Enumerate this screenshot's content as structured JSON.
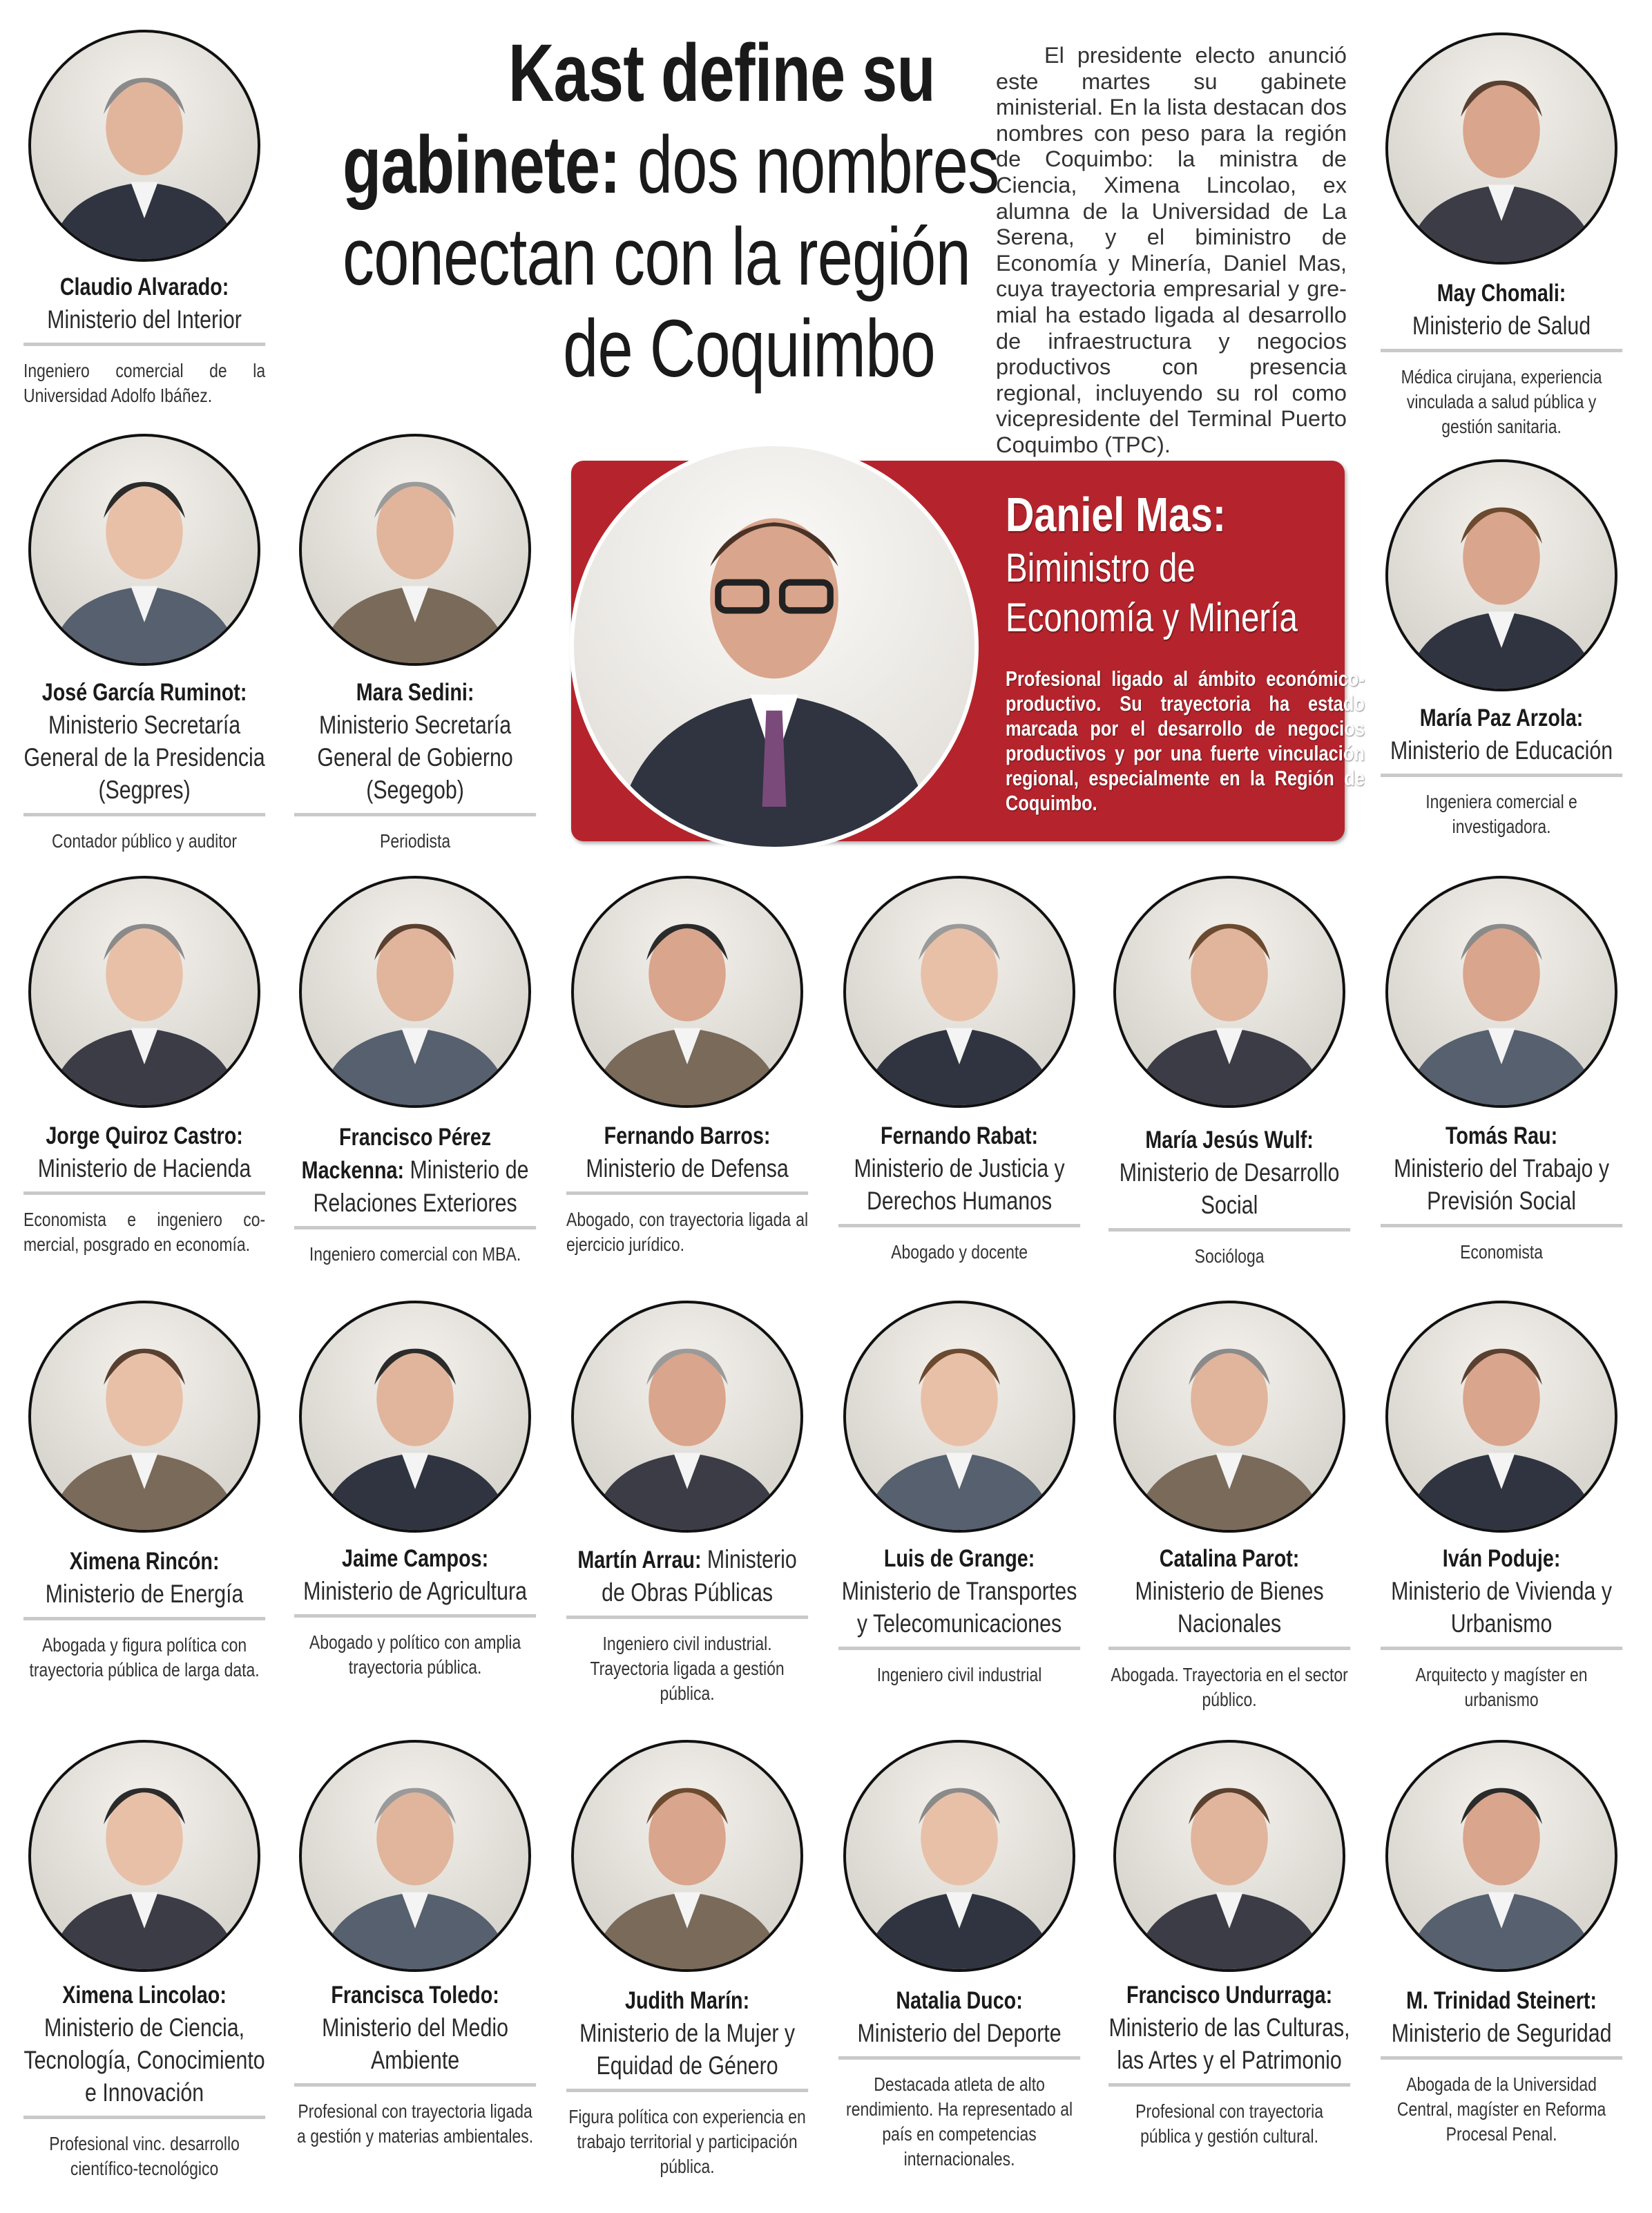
{
  "headline": {
    "line1_bold": "Kast define su",
    "line2_bold": "gabinete:",
    "line2_rest": " dos nombres",
    "line3": "conectan con la región",
    "line4": "de Coquimbo"
  },
  "intro": "El presidente electo anunció este martes su gabinete ministerial. En la lista destacan dos nombres con peso para la región de Coquim­bo: la ministra de Ciencia, Ximena Lincolao, ex alumna de la Universi­dad de La Serena, y el biministro de Economía y Minería, Daniel Mas, cuya trayectoria empresarial y gre­mial ha estado ligada al desarrollo de infraestructura y negocios produc­tivos con presencia regional, inclu­yendo su rol como vicepresidente del Terminal Puerto Coquimbo (TPC).",
  "feature": {
    "name": "Daniel Mas:",
    "role_line1": "Biministro de",
    "role_line2": "Economía y Minería",
    "description": "Profesional ligado al ámbito econó­mico-productivo. Su trayectoria ha estado marcada por el desarrollo de negocios productivos y por una fuer­te vinculación regional, especialmen­te en la Región de Coquimbo.",
    "box_color": "#b5242c"
  },
  "cards": [
    {
      "name": "Claudio Alvarado:",
      "ministry": "Ministerio del Interior",
      "caption": "Ingeniero comercial de la Universidad Adolfo Ibáñez."
    },
    {
      "name": "May Chomali:",
      "ministry": "Ministerio de Salud",
      "caption": "Médica cirujana, experien­cia vinculada a salud pública y gestión sanitaria."
    },
    {
      "name": "José García Ruminot:",
      "ministry": "Ministerio Secretaría General de la Presi­dencia (Segpres)",
      "caption": "Contador público y auditor"
    },
    {
      "name": "Mara Sedini:",
      "ministry": "Ministerio Secretaría General de Gobierno (Segegob)",
      "caption": "Periodista"
    },
    {
      "name": "María Paz Arzola:",
      "ministry": "Ministerio de Educación",
      "caption": "Ingeniera comercial e investigadora."
    },
    {
      "name": "Jorge Quiroz Castro:",
      "ministry": "Ministerio de Hacienda",
      "caption": "Economista e ingeniero co­mercial, posgrado en eco­nomía."
    },
    {
      "name": "Francisco Pérez Mackenna:",
      "ministry": "Ministerio de Relaciones Exteriores",
      "caption": "Ingeniero comercial con MBA."
    },
    {
      "name": "Fernando Barros:",
      "ministry": "Ministerio de Defensa",
      "caption": "Abogado, con trayectoria li­gada al ejercicio jurídico."
    },
    {
      "name": "Fernando Rabat:",
      "ministry": "Ministerio de Justicia y Derechos Humanos",
      "caption": "Abogado y docente"
    },
    {
      "name": "María Jesús Wulf:",
      "ministry": "Ministerio de Desarrollo Social",
      "caption": "Socióloga"
    },
    {
      "name": "Tomás Rau:",
      "ministry": "Ministerio del Trabajo y Previsión Social",
      "caption": "Economista"
    },
    {
      "name": "Ximena Rincón:",
      "ministry": "Ministerio de Energía",
      "caption": "Abogada y figura política con trayectoria pública de larga data."
    },
    {
      "name": "Jaime Campos:",
      "ministry": "Ministerio de Agricultura",
      "caption": "Abogado y político con amplia trayectoria pública."
    },
    {
      "name": "Martín Arrau:",
      "ministry": "Ministerio de Obras Públicas",
      "caption": "Ingeniero civil industrial. Trayectoria ligada a gestión pública."
    },
    {
      "name": "Luis de Grange:",
      "ministry": "Ministerio de Transportes y Telecomunicaciones",
      "caption": "Ingeniero civil industrial"
    },
    {
      "name": "Catalina Parot:",
      "ministry": "Ministerio de Bienes Nacionales",
      "caption": "Abogada. Trayectoria en el sector público."
    },
    {
      "name": "Iván Poduje:",
      "ministry": "Ministerio de Vivienda y Urbanismo",
      "caption": "Arquitecto y magíster en urbanismo"
    },
    {
      "name": "Ximena Lincolao:",
      "ministry": "Ministerio de Ciencia, Tecnología, Conoci­miento e Innovación",
      "caption": "Profesional vinc. desarrollo científico-tecnológico"
    },
    {
      "name": "Francisca Toledo:",
      "ministry": "Ministerio del Medio Ambiente",
      "caption": "Profesional con trayectoria ligada a gestión y materias ambientales."
    },
    {
      "name": "Judith Marín:",
      "ministry": "Ministerio de la Mujer y Equidad de Género",
      "caption": "Figura política con expe­riencia en trabajo territorial y participación pública."
    },
    {
      "name": "Natalia Duco:",
      "ministry": "Ministerio del Deporte",
      "caption": "Destacada atleta de alto rendimiento. Ha represen­tado al país en competen­cias internacionales."
    },
    {
      "name": "Francisco Undurraga:",
      "ministry": "Ministerio de las Culturas, las Artes y el Patrimonio",
      "caption": "Profesional con trayectoria pública y gestión cultural."
    },
    {
      "name": "M. Trinidad Steinert:",
      "ministry": "Ministerio de Seguridad",
      "caption": "Abogada de la Universidad Central, magíster en Reforma Procesal Penal."
    }
  ]
}
